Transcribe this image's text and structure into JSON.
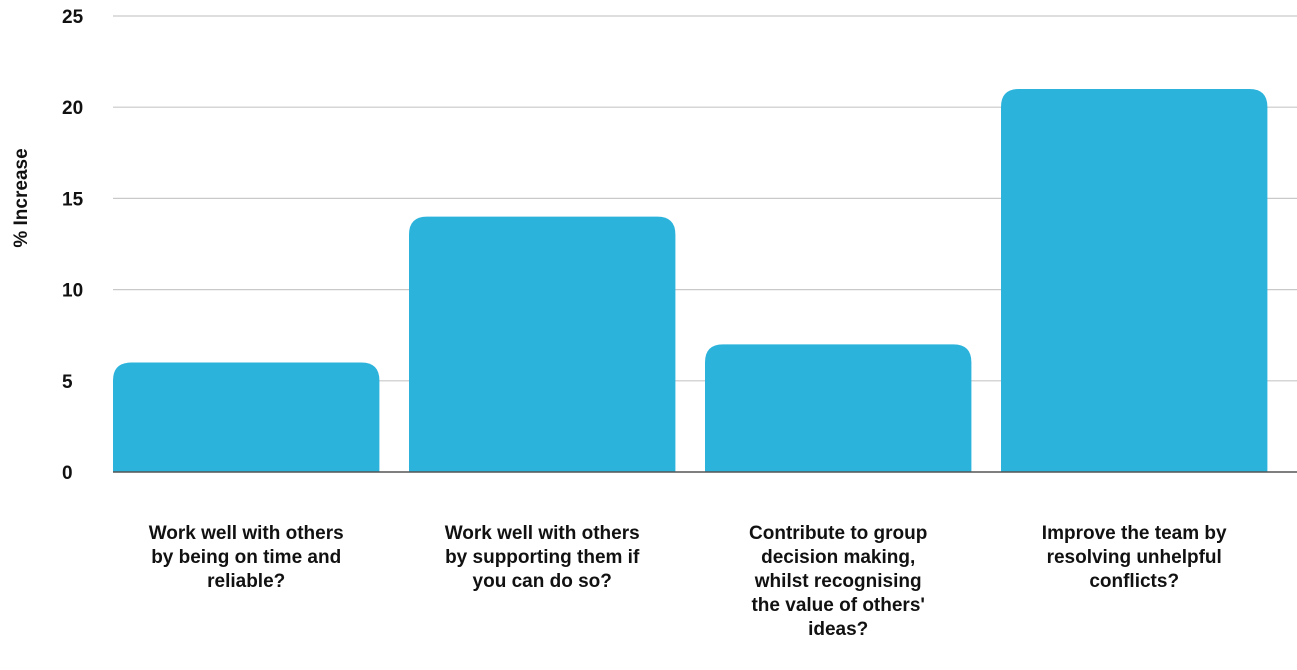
{
  "chart_data": {
    "type": "bar",
    "title": "",
    "xlabel": "",
    "ylabel": "% Increase",
    "ylim": [
      0,
      25
    ],
    "yticks": [
      0,
      5,
      10,
      15,
      20,
      25
    ],
    "grid": true,
    "bar_color": "#2bb3dc",
    "categories": [
      "Work well with others by being on time and reliable?",
      "Work well with others by supporting them if you can do so?",
      "Contribute to group decision making, whilst recognising the value of others' ideas?",
      "Improve the team by resolving unhelpful conflicts?"
    ],
    "category_lines": [
      [
        "Work well with others",
        "by being on time and",
        "reliable?"
      ],
      [
        "Work well with others",
        "by supporting them if",
        "you can do so?"
      ],
      [
        "Contribute to group",
        "decision making,",
        "whilst recognising",
        "the value of others'",
        "ideas?"
      ],
      [
        "Improve the team by",
        "resolving unhelpful",
        "conflicts?"
      ]
    ],
    "values": [
      6,
      14,
      7,
      21
    ]
  }
}
